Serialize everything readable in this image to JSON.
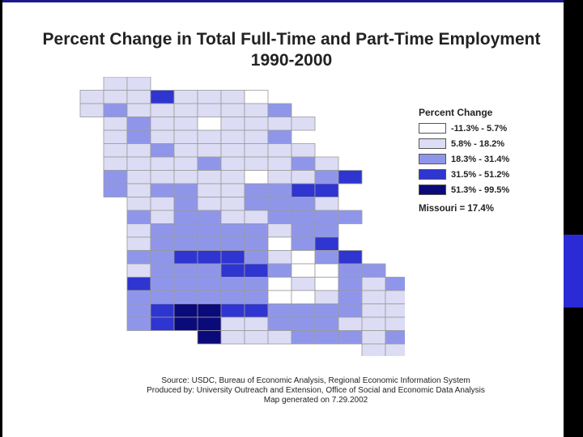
{
  "title_line1": "Percent Change in Total Full-Time and Part-Time Employment",
  "title_line2": "1990-2000",
  "legend": {
    "title": "Percent Change",
    "items": [
      {
        "label": "-11.3% - 5.7%",
        "color": "#ffffff"
      },
      {
        "label": "5.8% - 18.2%",
        "color": "#dcdcf5"
      },
      {
        "label": "18.3% - 31.4%",
        "color": "#8f96ea"
      },
      {
        "label": "31.5% - 51.2%",
        "color": "#2e35d0"
      },
      {
        "label": "51.3% - 99.5%",
        "color": "#0a0a7a"
      }
    ],
    "state_average": "Missouri = 17.4%"
  },
  "source": {
    "line1": "Source:  USDC, Bureau of Economic Analysis, Regional Economic Information System",
    "line2": "Produced by: University Outreach and Extension, Office of Social and Economic Data Analysis",
    "line3": "Map generated on 7.29.2002"
  },
  "map_grid": [
    "..LL.........",
    ".LLLDLLLW....",
    ".LMLLLLLLM...",
    "..LMLLWLLLL..",
    "..LMLLLLLM...",
    "..LLMLLLLLL..",
    "..LLLLMLLLML.",
    "..MLLLLLWLLMD",
    "..MLMMLLMMDD.",
    "...LLMLLMMML.",
    "...MLMMLLMMMM",
    "...LMMMMMLMM.",
    "...LMMMMMWMD.",
    "...MMDDDMLWMD",
    "...LMMMDDMWWMM",
    "...DMMMMMWLWMLM",
    "...MMMMMMWWLMLL",
    "...MDXXDDMMMMLL",
    "...MDXXLLMMMLLL",
    "......XLLLMMMLM",
    ".............LL"
  ]
}
